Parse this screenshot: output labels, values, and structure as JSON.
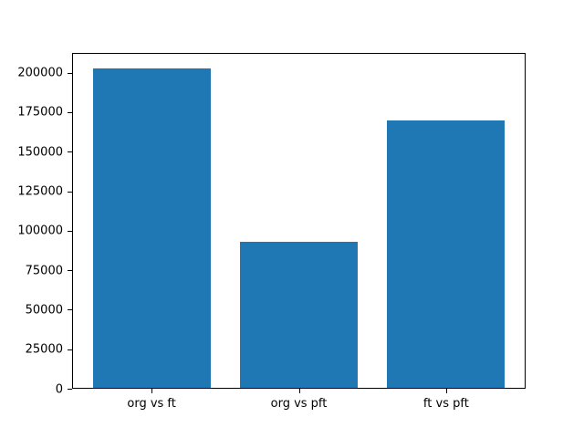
{
  "chart_data": {
    "type": "bar",
    "categories": [
      "org vs ft",
      "org vs pft",
      "ft vs pft"
    ],
    "values": [
      202800,
      92700,
      169800
    ],
    "title": "",
    "xlabel": "",
    "ylabel": "",
    "ylim": [
      0,
      212500
    ],
    "yticks": [
      0,
      25000,
      50000,
      75000,
      100000,
      125000,
      150000,
      175000,
      200000
    ],
    "bar_color": "#1f77b4",
    "axis_color": "#000000",
    "background_color": "#ffffff",
    "grid": false,
    "legend_position": "none"
  }
}
